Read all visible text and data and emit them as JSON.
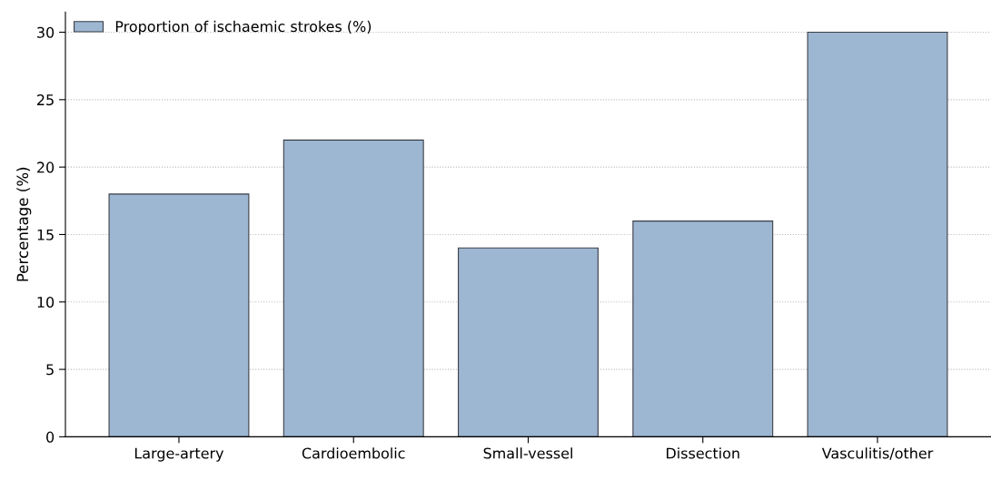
{
  "chart_data": {
    "type": "bar",
    "ylabel": "Percentage (%)",
    "categories": [
      "Large-artery",
      "Cardioembolic",
      "Small-vessel",
      "Dissection",
      "Vasculitis/other"
    ],
    "series": [
      {
        "name": "Proportion of ischaemic strokes (%)",
        "color": "#9db6d1",
        "values": [
          18,
          22,
          14,
          16,
          30
        ]
      }
    ],
    "ylim": [
      0,
      31.5
    ],
    "yticks": [
      0,
      5,
      10,
      15,
      20,
      25,
      30
    ],
    "grid": "y",
    "legend": "top left"
  }
}
